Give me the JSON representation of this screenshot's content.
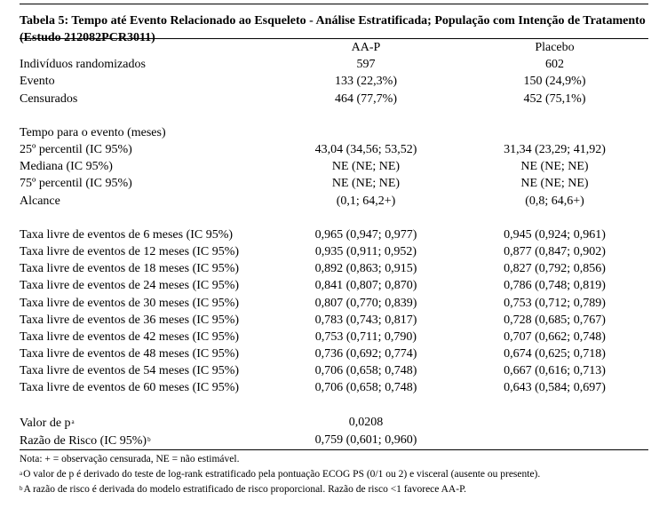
{
  "title": "Tabela 5: Tempo até Evento Relacionado ao Esqueleto - Análise Estratificada; População com Intenção de Tratamento (Estudo 212082PCR3011)",
  "columns": [
    "",
    "AA-P",
    "Placebo"
  ],
  "rows_top": [
    {
      "label": "Indivíduos randomizados",
      "aap": "597",
      "placebo": "602"
    },
    {
      "label": "Evento",
      "aap": "133 (22,3%)",
      "placebo": "150 (24,9%)"
    },
    {
      "label": "Censurados",
      "aap": "464 (77,7%)",
      "placebo": "452 (75,1%)"
    }
  ],
  "time_section": {
    "heading": "Tempo para o evento (meses)",
    "rows": [
      {
        "label": "25º percentil (IC 95%)",
        "aap": "43,04 (34,56; 53,52)",
        "placebo": "31,34 (23,29; 41,92)"
      },
      {
        "label": "Mediana (IC 95%)",
        "aap": "NE (NE; NE)",
        "placebo": "NE (NE; NE)"
      },
      {
        "label": "75º percentil (IC 95%)",
        "aap": "NE (NE; NE)",
        "placebo": "NE (NE; NE)"
      },
      {
        "label": "Alcance",
        "aap": "(0,1; 64,2+)",
        "placebo": "(0,8; 64,6+)"
      }
    ]
  },
  "event_free_rows": [
    {
      "label": "Taxa livre de eventos de 6 meses (IC 95%)",
      "aap": "0,965 (0,947; 0,977)",
      "placebo": "0,945 (0,924; 0,961)"
    },
    {
      "label": "Taxa livre de eventos de 12 meses (IC 95%)",
      "aap": "0,935 (0,911; 0,952)",
      "placebo": "0,877 (0,847; 0,902)"
    },
    {
      "label": "Taxa livre de eventos de 18 meses (IC 95%)",
      "aap": "0,892 (0,863; 0,915)",
      "placebo": "0,827 (0,792; 0,856)"
    },
    {
      "label": "Taxa livre de eventos de 24 meses (IC 95%)",
      "aap": "0,841 (0,807; 0,870)",
      "placebo": "0,786 (0,748; 0,819)"
    },
    {
      "label": "Taxa livre de eventos de 30 meses (IC 95%)",
      "aap": "0,807 (0,770; 0,839)",
      "placebo": "0,753 (0,712; 0,789)"
    },
    {
      "label": "Taxa livre de eventos de 36 meses (IC 95%)",
      "aap": "0,783 (0,743; 0,817)",
      "placebo": "0,728 (0,685; 0,767)"
    },
    {
      "label": "Taxa livre de eventos de 42 meses (IC 95%)",
      "aap": "0,753 (0,711; 0,790)",
      "placebo": "0,707 (0,662; 0,748)"
    },
    {
      "label": "Taxa livre de eventos de 48 meses (IC 95%)",
      "aap": "0,736 (0,692; 0,774)",
      "placebo": "0,674 (0,625; 0,718)"
    },
    {
      "label": "Taxa livre de eventos de 54 meses (IC 95%)",
      "aap": "0,706 (0,658; 0,748)",
      "placebo": "0,667 (0,616; 0,713)"
    },
    {
      "label": "Taxa livre de eventos de 60 meses (IC 95%)",
      "aap": "0,706 (0,658; 0,748)",
      "placebo": "0,643 (0,584; 0,697)"
    }
  ],
  "stats": {
    "pvalue_label": "Valor de p",
    "pvalue_mark": "a",
    "pvalue": "0,0208",
    "hr_label": "Razão de Risco (IC 95%)",
    "hr_mark": "b",
    "hr": "0,759 (0,601; 0,960)"
  },
  "notes": {
    "note": "Nota: + = observação censurada, NE = não estimável.",
    "fn_a_mark": "a",
    "fn_a": "O valor de p é derivado do teste de log-rank estratificado pela pontuação ECOG PS (0/1 ou 2) e visceral (ausente ou presente).",
    "fn_b_mark": "b",
    "fn_b": "A razão de risco é derivada do modelo estratificado de risco proporcional. Razão de risco <1 favorece AA-P."
  }
}
